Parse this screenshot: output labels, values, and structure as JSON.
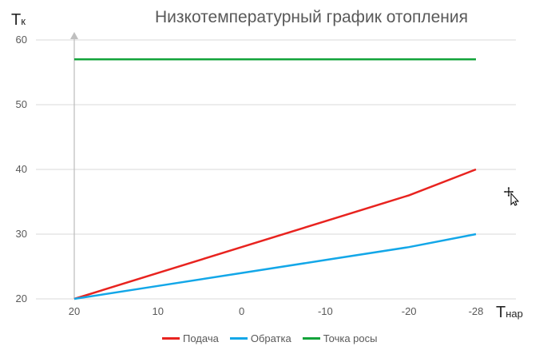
{
  "chart_data": {
    "type": "line",
    "title": "Низкотемпературный график отопления",
    "ylabel_main": "Т",
    "ylabel_sub": "к",
    "xlabel_main": "Т",
    "xlabel_sub": "нар",
    "categories": [
      "20",
      "10",
      "0",
      "-10",
      "-20",
      "-28"
    ],
    "x": [
      20,
      10,
      0,
      -10,
      -20,
      -28
    ],
    "ylim": [
      20,
      60
    ],
    "yticks": [
      "60",
      "50",
      "40",
      "30",
      "20"
    ],
    "grid": true,
    "legend_position": "bottom",
    "series": [
      {
        "name": "Подача",
        "color": "#e8231f",
        "values": [
          20,
          24,
          28,
          32,
          36,
          40
        ]
      },
      {
        "name": "Обратка",
        "color": "#13a7e8",
        "values": [
          20,
          22,
          24,
          26,
          28,
          30
        ]
      },
      {
        "name": "Точка росы",
        "color": "#12a33a",
        "values": [
          57,
          57,
          57,
          57,
          57,
          57
        ]
      }
    ]
  },
  "colors": {
    "grid": "#d9d9d9",
    "axis_arrow": "#bfbfbf"
  },
  "icons": {
    "cursor": "move-cursor-icon"
  }
}
